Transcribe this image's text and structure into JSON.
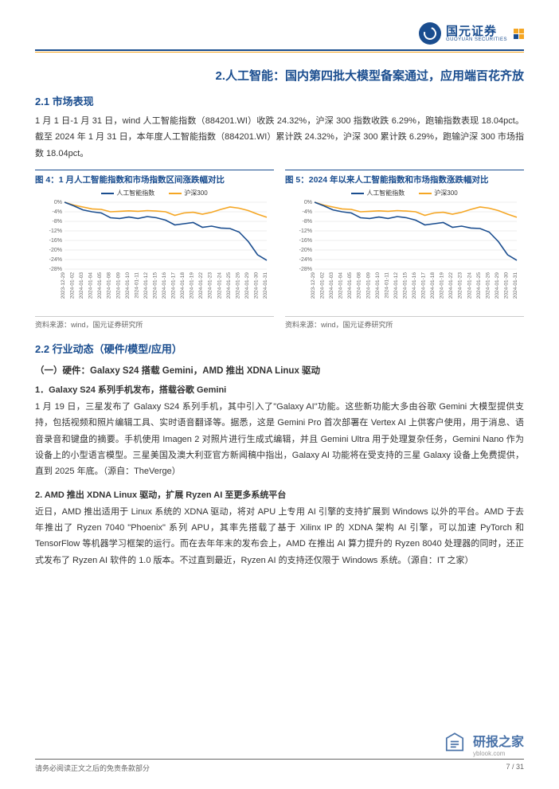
{
  "logo": {
    "cn": "国元证券",
    "en": "GUOYUAN SECURITIES"
  },
  "h1": "2.人工智能：国内第四批大模型备案通过，应用端百花齐放",
  "s21": {
    "title": "2.1 市场表现",
    "para": "1 月 1 日-1 月 31 日，wind 人工智能指数（884201.WI）收跌 24.32%，沪深 300 指数收跌 6.29%，跑输指数表现 18.04pct。截至 2024 年 1 月 31 日，本年度人工智能指数（884201.WI）累计跌 24.32%，沪深 300 累计跌 6.29%，跑输沪深 300 市场指数 18.04pct。"
  },
  "chart4": {
    "title": "图 4：1 月人工智能指数和市场指数区间涨跌幅对比",
    "legend": {
      "ai": "人工智能指数",
      "csi": "沪深300"
    },
    "colors": {
      "ai": "#1a4d8f",
      "csi": "#f5a623",
      "grid": "#d9d9d9",
      "bg": "#ffffff",
      "text": "#666666"
    },
    "ylim": [
      -28,
      0
    ],
    "ystep": 4,
    "yticks": [
      "0%",
      "-4%",
      "-8%",
      "-12%",
      "-16%",
      "-20%",
      "-24%",
      "-28%"
    ],
    "xlabels": [
      "2023-12-29",
      "2024-01-02",
      "2024-01-03",
      "2024-01-04",
      "2024-01-05",
      "2024-01-08",
      "2024-01-09",
      "2024-01-10",
      "2024-01-11",
      "2024-01-12",
      "2024-01-15",
      "2024-01-16",
      "2024-01-17",
      "2024-01-18",
      "2024-01-19",
      "2024-01-22",
      "2024-01-23",
      "2024-01-24",
      "2024-01-25",
      "2024-01-26",
      "2024-01-29",
      "2024-01-30",
      "2024-01-31"
    ],
    "ai_values": [
      0,
      -1.5,
      -3.2,
      -4.0,
      -4.5,
      -6.5,
      -6.8,
      -6.2,
      -6.8,
      -6.0,
      -6.5,
      -7.5,
      -9.5,
      -9.0,
      -8.5,
      -10.5,
      -10.0,
      -10.8,
      -11.0,
      -12.5,
      -16.5,
      -22.0,
      -24.3
    ],
    "csi_values": [
      0,
      -1.2,
      -2.0,
      -2.8,
      -3.0,
      -4.0,
      -3.8,
      -3.6,
      -3.8,
      -3.5,
      -3.7,
      -4.0,
      -5.5,
      -4.5,
      -4.2,
      -5.0,
      -4.2,
      -3.0,
      -2.0,
      -2.5,
      -3.5,
      -5.0,
      -6.3
    ],
    "source": "资料来源：wind，国元证券研究所"
  },
  "chart5": {
    "title": "图 5：2024 年以来人工智能指数和市场指数涨跌幅对比",
    "legend": {
      "ai": "人工智能指数",
      "csi": "沪深300"
    },
    "colors": {
      "ai": "#1a4d8f",
      "csi": "#f5a623",
      "grid": "#d9d9d9",
      "bg": "#ffffff",
      "text": "#666666"
    },
    "ylim": [
      -28,
      0
    ],
    "ystep": 4,
    "yticks": [
      "0%",
      "-4%",
      "-8%",
      "-12%",
      "-16%",
      "-20%",
      "-24%",
      "-28%"
    ],
    "xlabels": [
      "2023-12-29",
      "2024-01-02",
      "2024-01-03",
      "2024-01-04",
      "2024-01-05",
      "2024-01-08",
      "2024-01-09",
      "2024-01-10",
      "2024-01-11",
      "2024-01-12",
      "2024-01-15",
      "2024-01-16",
      "2024-01-17",
      "2024-01-18",
      "2024-01-19",
      "2024-01-22",
      "2024-01-23",
      "2024-01-24",
      "2024-01-25",
      "2024-01-26",
      "2024-01-29",
      "2024-01-30",
      "2024-01-31"
    ],
    "ai_values": [
      0,
      -1.5,
      -3.2,
      -4.0,
      -4.5,
      -6.5,
      -6.8,
      -6.2,
      -6.8,
      -6.0,
      -6.5,
      -7.5,
      -9.5,
      -9.0,
      -8.5,
      -10.5,
      -10.0,
      -10.8,
      -11.0,
      -12.5,
      -16.5,
      -22.0,
      -24.3
    ],
    "csi_values": [
      0,
      -1.2,
      -2.0,
      -2.8,
      -3.0,
      -4.0,
      -3.8,
      -3.6,
      -3.8,
      -3.5,
      -3.7,
      -4.0,
      -5.5,
      -4.5,
      -4.2,
      -5.0,
      -4.2,
      -3.0,
      -2.0,
      -2.5,
      -3.5,
      -5.0,
      -6.3
    ],
    "source": "资料来源：wind，国元证券研究所"
  },
  "s22": {
    "title": "2.2 行业动态（硬件/模型/应用）",
    "sub1": "（一）硬件：Galaxy S24 搭载 Gemini，AMD 推出 XDNA Linux 驱动",
    "item1_title": "1．Galaxy S24 系列手机发布，搭载谷歌 Gemini",
    "item1_body": "1 月 19 日，三星发布了 Galaxy S24 系列手机，其中引入了\"Galaxy AI\"功能。这些新功能大多由谷歌 Gemini 大模型提供支持，包括视频和照片编辑工具、实时语音翻译等。据悉，这是 Gemini Pro 首次部署在 Vertex AI 上供客户使用，用于消息、语音录音和键盘的摘要。手机使用 Imagen 2 对照片进行生成式编辑，并且 Gemini Ultra 用于处理复杂任务，Gemini Nano 作为设备上的小型语言模型。三星美国及澳大利亚官方新闻稿中指出，Galaxy AI 功能将在受支持的三星 Galaxy 设备上免费提供，直到 2025 年底。（源自：TheVerge）",
    "item2_title": "2. AMD 推出 XDNA Linux 驱动，扩展 Ryzen AI 至更多系统平台",
    "item2_body": "近日，AMD 推出适用于 Linux 系统的 XDNA 驱动，将对 APU 上专用 AI 引擎的支持扩展到 Windows 以外的平台。AMD 于去年推出了 Ryzen 7040 \"Phoenix\" 系列 APU，其率先搭载了基于 Xilinx IP 的 XDNA 架构 AI 引擎，可以加速 PyTorch 和 TensorFlow 等机器学习框架的运行。而在去年年末的发布会上，AMD 在推出 AI 算力提升的 Ryzen 8040 处理器的同时，还正式发布了 Ryzen AI 软件的 1.0 版本。不过直到最近，Ryzen AI 的支持还仅限于 Windows 系统。（源自：IT 之家）"
  },
  "footer": {
    "left": "请务必阅读正文之后的免责条款部分",
    "right": "7 / 31"
  },
  "watermark": {
    "cn": "研报之家",
    "en": "yblook.com"
  }
}
